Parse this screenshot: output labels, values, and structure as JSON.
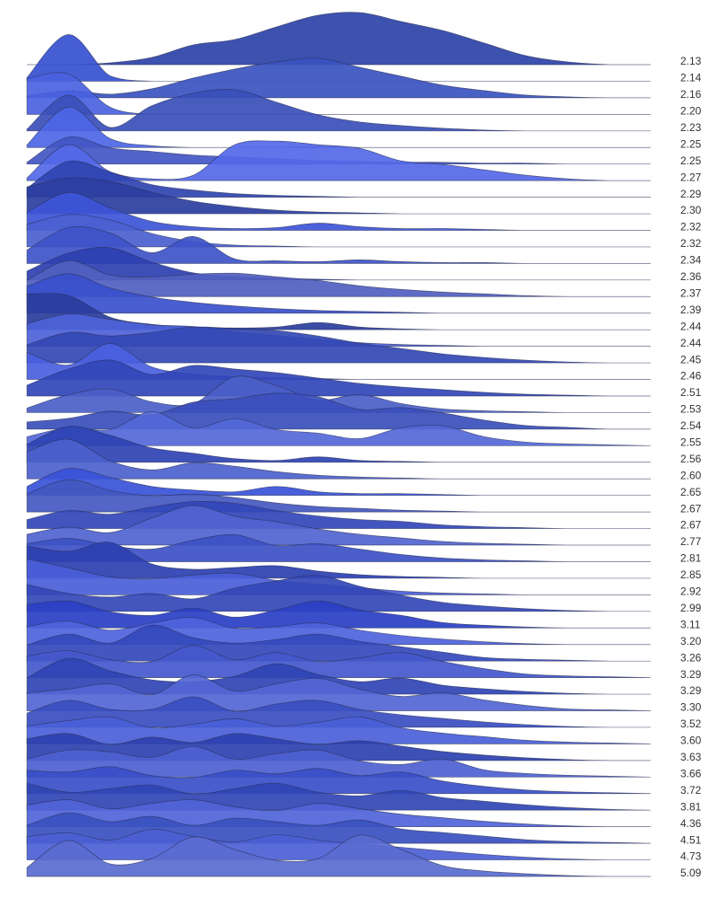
{
  "chart_data": {
    "type": "ridgeline",
    "series": [
      {
        "name": "2.13",
        "color": "#2d43a8",
        "values": [
          0,
          0,
          2,
          8,
          22,
          28,
          42,
          55,
          58,
          48,
          38,
          24,
          10,
          3,
          0,
          0
        ]
      },
      {
        "name": "2.14",
        "color": "#3550d0",
        "values": [
          4,
          52,
          6,
          0,
          0,
          0,
          0,
          0,
          0,
          0,
          0,
          0,
          0,
          0,
          0,
          0
        ]
      },
      {
        "name": "2.16",
        "color": "#3a52c0",
        "values": [
          2,
          8,
          4,
          10,
          22,
          32,
          40,
          44,
          34,
          24,
          14,
          8,
          3,
          1,
          0,
          0
        ]
      },
      {
        "name": "2.20",
        "color": "#4a62e0",
        "values": [
          40,
          45,
          8,
          0,
          0,
          0,
          0,
          0,
          0,
          0,
          0,
          0,
          0,
          0,
          0,
          0
        ]
      },
      {
        "name": "2.23",
        "color": "#3a4fb8",
        "values": [
          2,
          40,
          4,
          28,
          42,
          46,
          32,
          18,
          10,
          6,
          3,
          1,
          0,
          0,
          0,
          0
        ]
      },
      {
        "name": "2.25",
        "color": "#4d66e6",
        "values": [
          3,
          45,
          10,
          2,
          0,
          0,
          0,
          1,
          0,
          0,
          0,
          0,
          0,
          0,
          0,
          0
        ]
      },
      {
        "name": "2.25",
        "color": "#4356c4",
        "values": [
          2,
          30,
          18,
          14,
          10,
          8,
          6,
          4,
          3,
          2,
          2,
          1,
          1,
          0,
          0,
          0
        ]
      },
      {
        "name": "2.27",
        "color": "#5468e8",
        "values": [
          3,
          40,
          10,
          2,
          6,
          40,
          44,
          40,
          36,
          22,
          18,
          12,
          6,
          2,
          0,
          0
        ]
      },
      {
        "name": "2.29",
        "color": "#2f44b0",
        "values": [
          10,
          40,
          28,
          14,
          8,
          4,
          2,
          1,
          0,
          0,
          0,
          0,
          0,
          0,
          0,
          0
        ]
      },
      {
        "name": "2.30",
        "color": "#2b3ea0",
        "values": [
          30,
          40,
          36,
          24,
          14,
          8,
          4,
          2,
          1,
          0,
          0,
          0,
          0,
          0,
          0,
          0
        ]
      },
      {
        "name": "2.32",
        "color": "#3d55d8",
        "values": [
          20,
          42,
          25,
          10,
          4,
          2,
          3,
          8,
          4,
          2,
          2,
          1,
          0,
          0,
          0,
          0
        ]
      },
      {
        "name": "2.32",
        "color": "#4b60d0",
        "values": [
          25,
          36,
          30,
          15,
          6,
          2,
          1,
          0,
          0,
          0,
          0,
          0,
          0,
          0,
          0,
          0
        ]
      },
      {
        "name": "2.34",
        "color": "#3e54c8",
        "values": [
          15,
          40,
          34,
          12,
          30,
          5,
          3,
          2,
          4,
          2,
          1,
          1,
          0,
          0,
          0,
          0
        ]
      },
      {
        "name": "2.36",
        "color": "#2c40b0",
        "values": [
          10,
          30,
          36,
          20,
          8,
          4,
          2,
          1,
          0,
          0,
          0,
          0,
          0,
          0,
          0,
          0
        ]
      },
      {
        "name": "2.37",
        "color": "#5060c0",
        "values": [
          18,
          40,
          24,
          22,
          25,
          26,
          22,
          18,
          12,
          8,
          5,
          3,
          1,
          0,
          0,
          0
        ]
      },
      {
        "name": "2.39",
        "color": "#3a50cc",
        "values": [
          30,
          44,
          28,
          18,
          12,
          8,
          5,
          3,
          2,
          1,
          0,
          0,
          0,
          0,
          0,
          0
        ]
      },
      {
        "name": "2.44",
        "color": "#2a3d9c",
        "values": [
          40,
          38,
          14,
          6,
          3,
          2,
          3,
          8,
          3,
          1,
          0,
          0,
          0,
          0,
          0,
          0
        ]
      },
      {
        "name": "2.44",
        "color": "#4d62d8",
        "values": [
          25,
          36,
          30,
          24,
          22,
          16,
          12,
          8,
          4,
          2,
          1,
          0,
          0,
          0,
          0,
          0
        ]
      },
      {
        "name": "2.45",
        "color": "#3348b4",
        "values": [
          20,
          34,
          30,
          34,
          40,
          38,
          36,
          30,
          22,
          16,
          10,
          6,
          3,
          1,
          0,
          0
        ]
      },
      {
        "name": "2.46",
        "color": "#4a5fe0",
        "values": [
          30,
          16,
          40,
          14,
          6,
          3,
          2,
          1,
          0,
          0,
          0,
          0,
          0,
          0,
          0,
          0
        ]
      },
      {
        "name": "2.51",
        "color": "#3146b8",
        "values": [
          12,
          30,
          40,
          24,
          34,
          30,
          26,
          20,
          14,
          10,
          7,
          4,
          2,
          1,
          0,
          0
        ]
      },
      {
        "name": "2.53",
        "color": "#4b5fc8",
        "values": [
          5,
          20,
          26,
          12,
          10,
          40,
          30,
          14,
          20,
          10,
          4,
          2,
          1,
          0,
          0,
          0
        ]
      },
      {
        "name": "2.54",
        "color": "#3a4fbc",
        "values": [
          8,
          12,
          20,
          16,
          30,
          34,
          40,
          36,
          22,
          24,
          18,
          10,
          4,
          2,
          0,
          0
        ]
      },
      {
        "name": "2.55",
        "color": "#5468d8",
        "values": [
          10,
          20,
          18,
          38,
          20,
          30,
          18,
          14,
          8,
          20,
          22,
          10,
          4,
          2,
          1,
          0
        ]
      },
      {
        "name": "2.56",
        "color": "#2e43b4",
        "values": [
          20,
          40,
          30,
          16,
          10,
          4,
          2,
          6,
          2,
          1,
          0,
          0,
          0,
          0,
          0,
          0
        ]
      },
      {
        "name": "2.60",
        "color": "#4c61cc",
        "values": [
          30,
          44,
          20,
          10,
          18,
          14,
          8,
          4,
          2,
          1,
          0,
          0,
          0,
          0,
          0,
          0
        ]
      },
      {
        "name": "2.65",
        "color": "#3a52d8",
        "values": [
          10,
          30,
          20,
          10,
          6,
          4,
          10,
          4,
          2,
          2,
          1,
          0,
          0,
          0,
          0,
          0
        ]
      },
      {
        "name": "2.67",
        "color": "#4458c0",
        "values": [
          20,
          36,
          24,
          18,
          20,
          16,
          10,
          6,
          4,
          2,
          1,
          0,
          0,
          0,
          0,
          0
        ]
      },
      {
        "name": "2.67",
        "color": "#3247b8",
        "values": [
          10,
          20,
          16,
          24,
          30,
          28,
          20,
          14,
          10,
          8,
          4,
          2,
          1,
          0,
          0,
          0
        ]
      },
      {
        "name": "2.77",
        "color": "#5064d0",
        "values": [
          12,
          20,
          14,
          30,
          44,
          32,
          26,
          18,
          12,
          8,
          4,
          2,
          1,
          0,
          0,
          0
        ]
      },
      {
        "name": "2.81",
        "color": "#3c50c4",
        "values": [
          20,
          26,
          18,
          14,
          24,
          30,
          18,
          20,
          14,
          8,
          4,
          2,
          1,
          0,
          0,
          0
        ]
      },
      {
        "name": "2.85",
        "color": "#2b40b0",
        "values": [
          36,
          30,
          40,
          16,
          10,
          12,
          14,
          8,
          4,
          2,
          1,
          0,
          0,
          0,
          0,
          0
        ]
      },
      {
        "name": "2.92",
        "color": "#4a5ed8",
        "values": [
          40,
          30,
          20,
          18,
          22,
          24,
          16,
          12,
          8,
          4,
          2,
          1,
          0,
          0,
          0,
          0
        ]
      },
      {
        "name": "2.99",
        "color": "#3348b8",
        "values": [
          30,
          20,
          16,
          20,
          14,
          26,
          34,
          40,
          28,
          18,
          10,
          6,
          3,
          1,
          0,
          0
        ]
      },
      {
        "name": "3.11",
        "color": "#2a3fc4",
        "values": [
          26,
          30,
          18,
          14,
          22,
          12,
          20,
          30,
          20,
          14,
          6,
          3,
          1,
          0,
          0,
          0
        ]
      },
      {
        "name": "3.20",
        "color": "#4e63dc",
        "values": [
          20,
          26,
          16,
          24,
          30,
          18,
          20,
          24,
          16,
          10,
          6,
          3,
          1,
          0,
          0,
          0
        ]
      },
      {
        "name": "3.26",
        "color": "#3449bc",
        "values": [
          18,
          30,
          20,
          40,
          26,
          20,
          24,
          30,
          22,
          16,
          10,
          4,
          2,
          1,
          0,
          0
        ]
      },
      {
        "name": "3.29",
        "color": "#4458cc",
        "values": [
          24,
          30,
          20,
          18,
          36,
          20,
          28,
          18,
          22,
          28,
          18,
          10,
          4,
          2,
          1,
          0
        ]
      },
      {
        "name": "3.29",
        "color": "#2f44b4",
        "values": [
          18,
          40,
          26,
          16,
          14,
          20,
          34,
          22,
          14,
          18,
          10,
          6,
          3,
          1,
          0,
          0
        ]
      },
      {
        "name": "3.30",
        "color": "#5266d4",
        "values": [
          20,
          24,
          30,
          18,
          40,
          22,
          30,
          36,
          24,
          16,
          20,
          12,
          6,
          2,
          1,
          0
        ]
      },
      {
        "name": "3.52",
        "color": "#394ec0",
        "values": [
          16,
          30,
          20,
          20,
          34,
          18,
          26,
          30,
          20,
          14,
          10,
          6,
          3,
          1,
          0,
          0
        ]
      },
      {
        "name": "3.60",
        "color": "#4a5fd8",
        "values": [
          20,
          26,
          30,
          18,
          22,
          28,
          20,
          24,
          30,
          18,
          12,
          8,
          4,
          2,
          1,
          0
        ]
      },
      {
        "name": "3.63",
        "color": "#2c41b0",
        "values": [
          24,
          30,
          18,
          26,
          20,
          30,
          24,
          18,
          22,
          16,
          10,
          6,
          3,
          1,
          0,
          0
        ]
      },
      {
        "name": "3.66",
        "color": "#4d61d0",
        "values": [
          20,
          30,
          28,
          22,
          34,
          20,
          26,
          30,
          18,
          14,
          20,
          8,
          4,
          2,
          1,
          0
        ]
      },
      {
        "name": "3.72",
        "color": "#3a4fc8",
        "values": [
          26,
          24,
          30,
          20,
          18,
          26,
          22,
          28,
          20,
          24,
          14,
          8,
          4,
          2,
          1,
          0
        ]
      },
      {
        "name": "3.81",
        "color": "#3045b4",
        "values": [
          30,
          20,
          24,
          28,
          18,
          24,
          30,
          20,
          16,
          22,
          14,
          10,
          6,
          3,
          1,
          0
        ]
      },
      {
        "name": "4.36",
        "color": "#5064d8",
        "values": [
          24,
          30,
          20,
          26,
          30,
          22,
          18,
          26,
          20,
          14,
          10,
          6,
          3,
          1,
          0,
          0
        ]
      },
      {
        "name": "4.51",
        "color": "#3a50c0",
        "values": [
          20,
          34,
          24,
          30,
          20,
          28,
          24,
          20,
          26,
          16,
          12,
          8,
          4,
          2,
          1,
          0
        ]
      },
      {
        "name": "4.73",
        "color": "#4c60d4",
        "values": [
          26,
          30,
          22,
          34,
          26,
          20,
          28,
          22,
          18,
          14,
          10,
          6,
          3,
          1,
          0,
          0
        ]
      },
      {
        "name": "5.09",
        "color": "#5a6bd0",
        "values": [
          10,
          40,
          14,
          20,
          44,
          30,
          18,
          20,
          46,
          30,
          12,
          6,
          3,
          1,
          0,
          0
        ]
      }
    ]
  }
}
